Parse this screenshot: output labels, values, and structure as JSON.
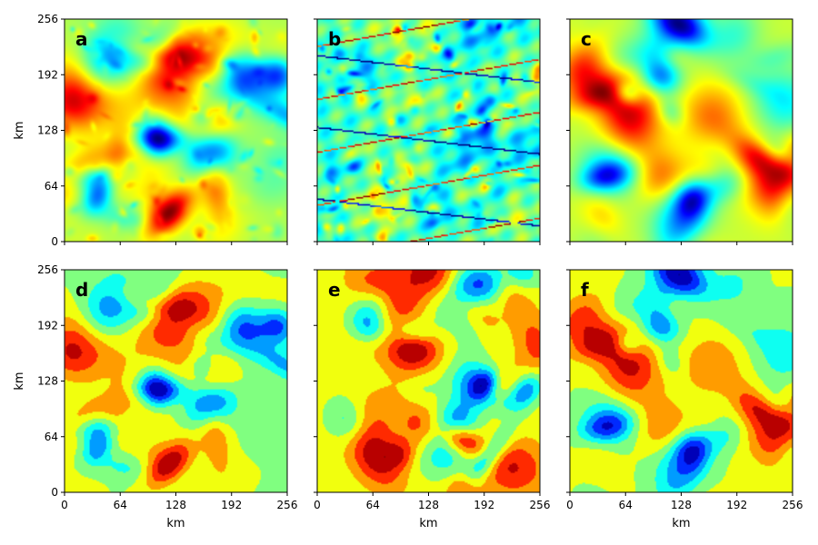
{
  "chart_data": [
    {
      "type": "heatmap",
      "panel_label": "a",
      "style": "continuous",
      "seed": 11,
      "xlim": [
        0,
        256
      ],
      "ylim": [
        0,
        256
      ],
      "colormap": "jet",
      "x_ticks": [
        "0",
        "64",
        "128",
        "192",
        "256"
      ],
      "y_ticks": [
        "0",
        "64",
        "128",
        "192",
        "256"
      ],
      "ylabel": "km",
      "xlabel": ""
    },
    {
      "type": "heatmap",
      "panel_label": "b",
      "style": "noisy",
      "seed": 23,
      "xlim": [
        0,
        256
      ],
      "ylim": [
        0,
        256
      ],
      "colormap": "jet",
      "x_ticks": [
        "0",
        "64",
        "128",
        "192",
        "256"
      ],
      "y_ticks": [
        "0",
        "64",
        "128",
        "192",
        "256"
      ],
      "ylabel": "",
      "xlabel": ""
    },
    {
      "type": "heatmap",
      "panel_label": "c",
      "style": "smooth",
      "seed": 37,
      "xlim": [
        0,
        256
      ],
      "ylim": [
        0,
        256
      ],
      "colormap": "jet",
      "x_ticks": [
        "0",
        "64",
        "128",
        "192",
        "256"
      ],
      "y_ticks": [
        "0",
        "64",
        "128",
        "192",
        "256"
      ],
      "ylabel": "",
      "xlabel": ""
    },
    {
      "type": "heatmap",
      "panel_label": "d",
      "style": "categorical",
      "seed": 11,
      "xlim": [
        0,
        256
      ],
      "ylim": [
        0,
        256
      ],
      "colormap": "jet",
      "x_ticks": [
        "0",
        "64",
        "128",
        "192",
        "256"
      ],
      "y_ticks": [
        "0",
        "64",
        "128",
        "192",
        "256"
      ],
      "ylabel": "km",
      "xlabel": "km"
    },
    {
      "type": "heatmap",
      "panel_label": "e",
      "style": "categorical",
      "seed": 23,
      "xlim": [
        0,
        256
      ],
      "ylim": [
        0,
        256
      ],
      "colormap": "jet",
      "x_ticks": [
        "0",
        "64",
        "128",
        "192",
        "256"
      ],
      "y_ticks": [
        "0",
        "64",
        "128",
        "192",
        "256"
      ],
      "ylabel": "",
      "xlabel": "km"
    },
    {
      "type": "heatmap",
      "panel_label": "f",
      "style": "categorical",
      "seed": 37,
      "xlim": [
        0,
        256
      ],
      "ylim": [
        0,
        256
      ],
      "colormap": "jet",
      "x_ticks": [
        "0",
        "64",
        "128",
        "192",
        "256"
      ],
      "y_ticks": [
        "0",
        "64",
        "128",
        "192",
        "256"
      ],
      "ylabel": "",
      "xlabel": "km"
    }
  ]
}
